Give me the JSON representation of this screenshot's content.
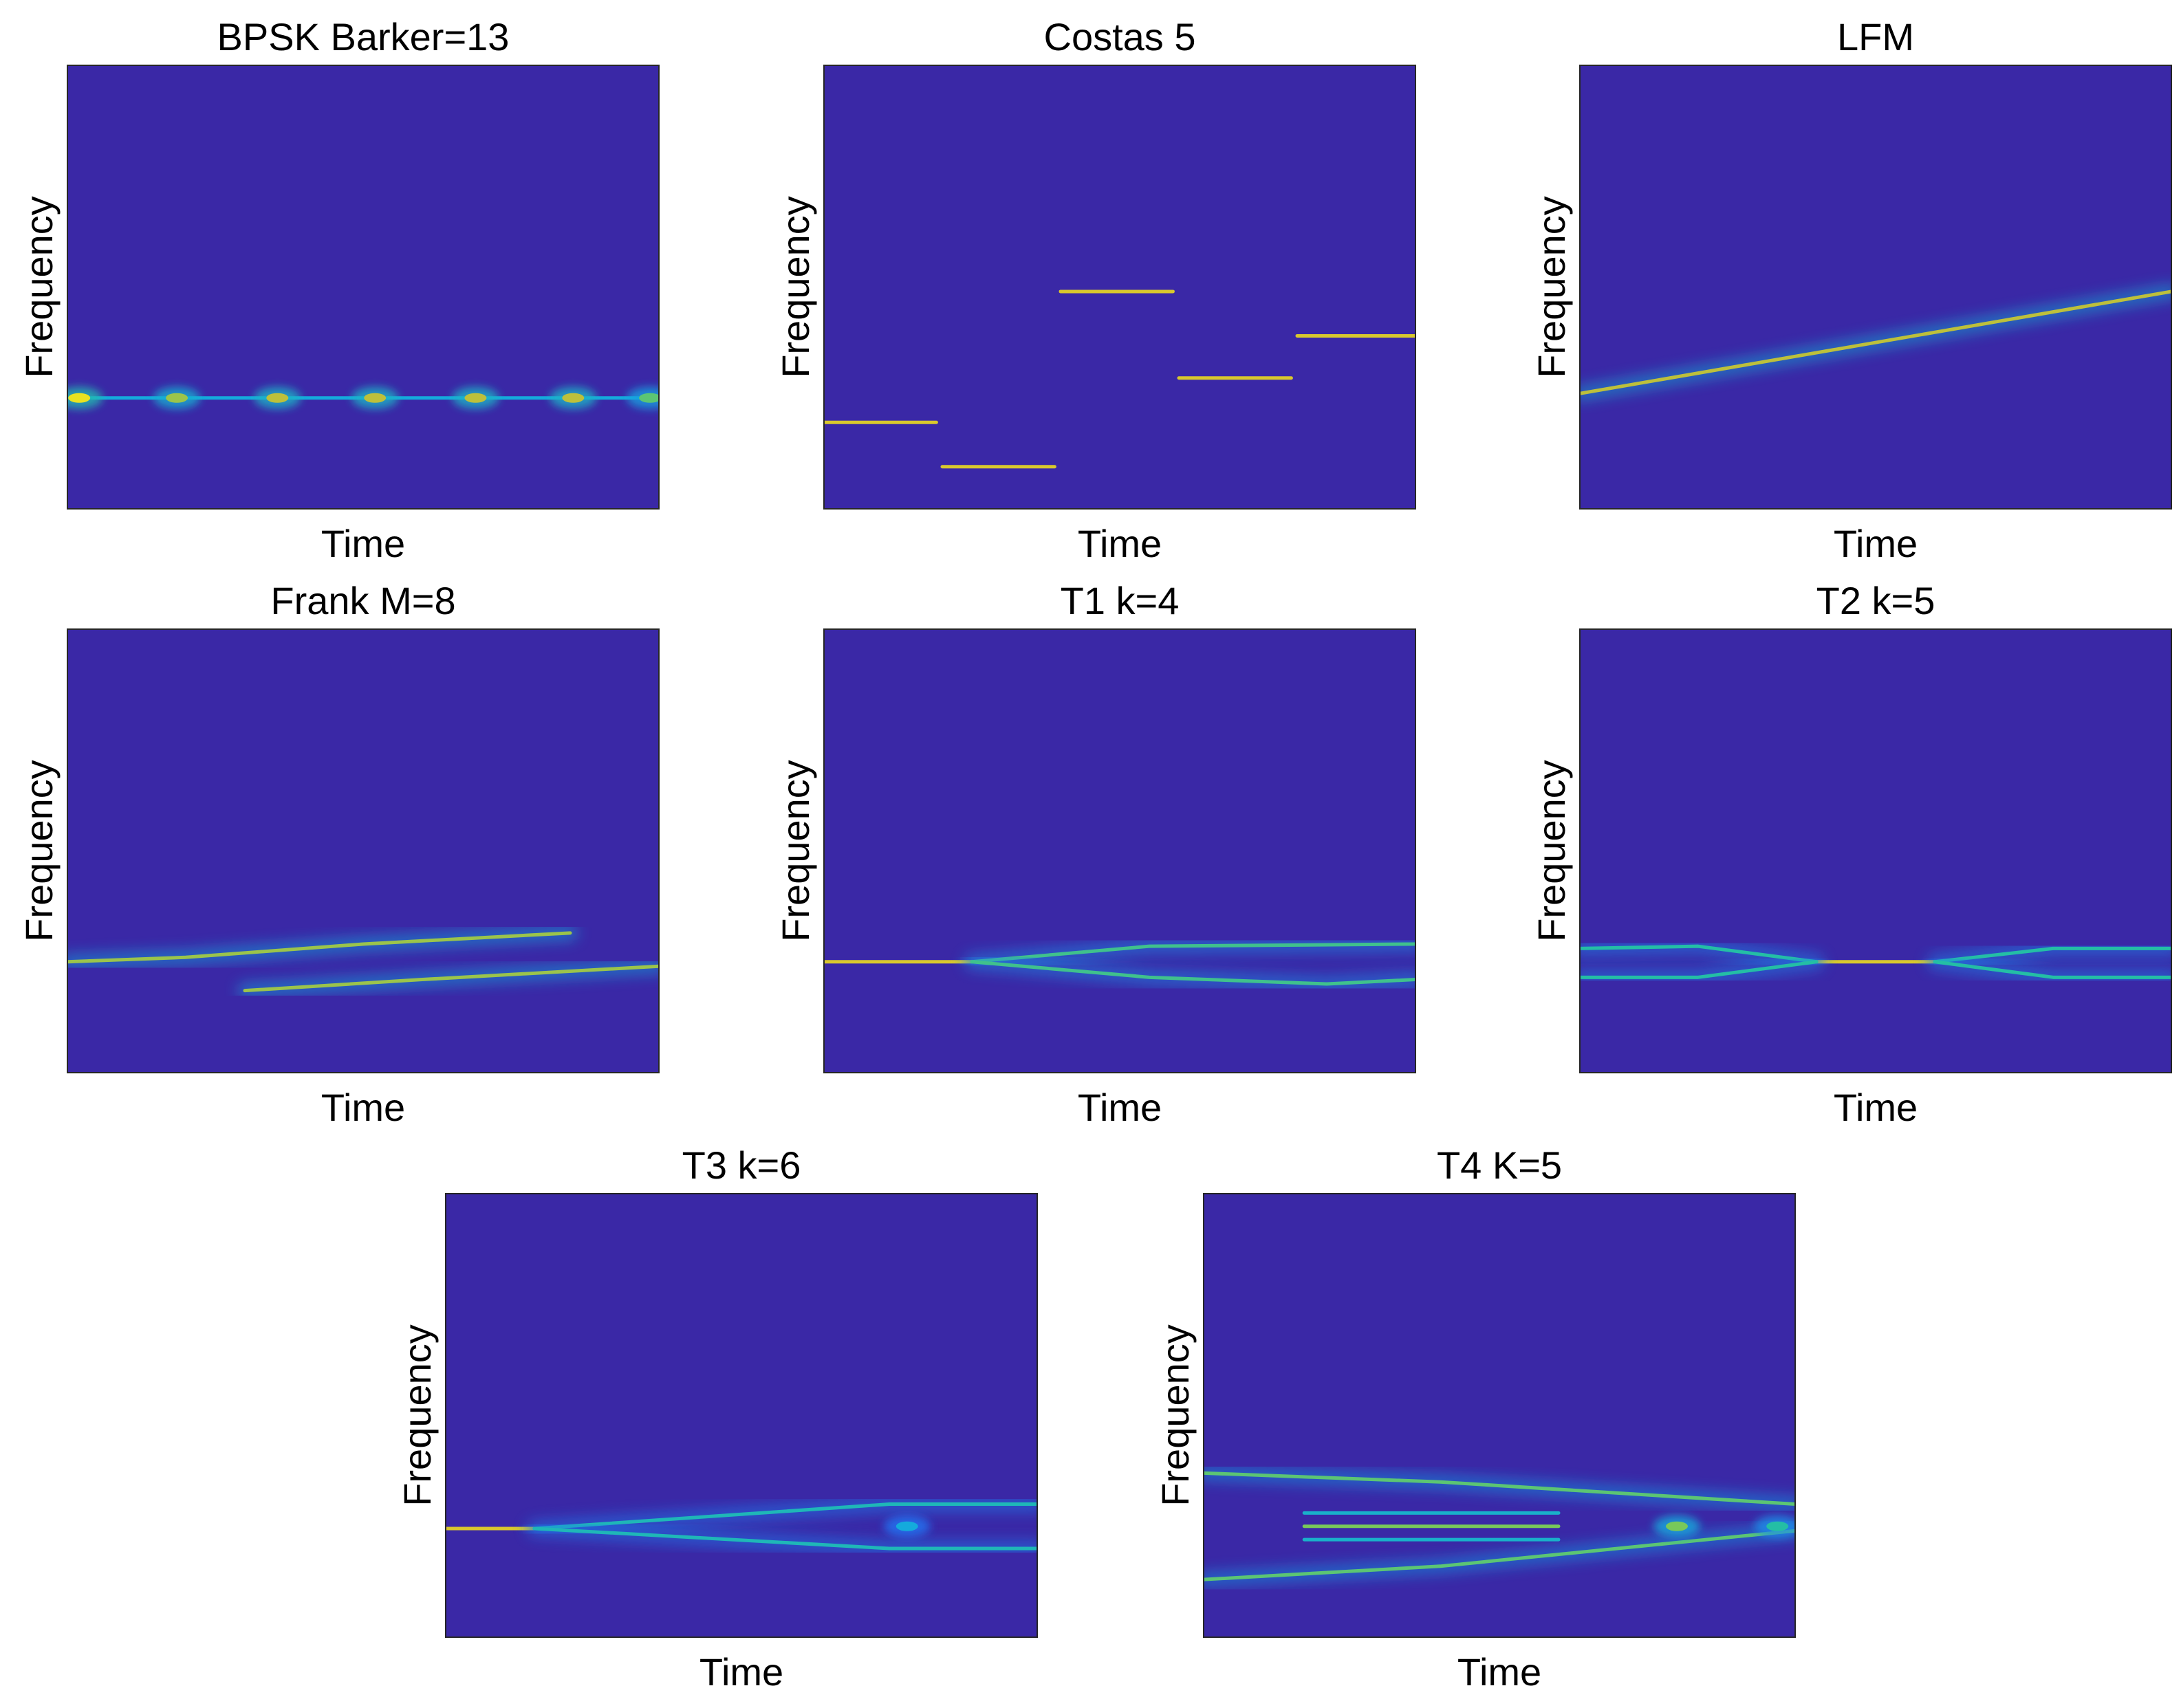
{
  "chart_data": [
    {
      "type": "heatmap",
      "title": "BPSK  Barker=13",
      "xlabel": "Time",
      "ylabel": "Frequency",
      "xlim": [
        0,
        1
      ],
      "ylim": [
        0,
        1
      ],
      "ridges": [
        {
          "points": [
            [
              0.0,
              0.25
            ],
            [
              1.0,
              0.25
            ]
          ],
          "intensity": 0.45
        }
      ],
      "hotspots": [
        {
          "x": 0.02,
          "y": 0.25,
          "intensity": 0.95
        },
        {
          "x": 0.185,
          "y": 0.25,
          "intensity": 0.8
        },
        {
          "x": 0.355,
          "y": 0.25,
          "intensity": 0.85
        },
        {
          "x": 0.52,
          "y": 0.25,
          "intensity": 0.85
        },
        {
          "x": 0.69,
          "y": 0.25,
          "intensity": 0.85
        },
        {
          "x": 0.855,
          "y": 0.25,
          "intensity": 0.85
        },
        {
          "x": 0.985,
          "y": 0.25,
          "intensity": 0.7
        }
      ]
    },
    {
      "type": "heatmap",
      "title": "Costas  5",
      "xlabel": "Time",
      "ylabel": "Frequency",
      "xlim": [
        0,
        1
      ],
      "ylim": [
        0,
        1
      ],
      "ridges": [
        {
          "points": [
            [
              0.0,
              0.195
            ],
            [
              0.19,
              0.195
            ]
          ],
          "intensity": 0.9
        },
        {
          "points": [
            [
              0.2,
              0.095
            ],
            [
              0.39,
              0.095
            ]
          ],
          "intensity": 0.9
        },
        {
          "points": [
            [
              0.4,
              0.49
            ],
            [
              0.59,
              0.49
            ]
          ],
          "intensity": 0.9
        },
        {
          "points": [
            [
              0.6,
              0.295
            ],
            [
              0.79,
              0.295
            ]
          ],
          "intensity": 0.9
        },
        {
          "points": [
            [
              0.8,
              0.39
            ],
            [
              1.0,
              0.39
            ]
          ],
          "intensity": 0.9
        }
      ],
      "hotspots": []
    },
    {
      "type": "heatmap",
      "title": "LFM",
      "xlabel": "Time",
      "ylabel": "Frequency",
      "xlim": [
        0,
        1
      ],
      "ylim": [
        0,
        1
      ],
      "ridges": [
        {
          "points": [
            [
              0.0,
              0.26
            ],
            [
              1.0,
              0.49
            ]
          ],
          "intensity": 0.85
        }
      ],
      "hotspots": []
    },
    {
      "type": "heatmap",
      "title": "Frank  M=8",
      "xlabel": "Time",
      "ylabel": "Frequency",
      "xlim": [
        0,
        1
      ],
      "ylim": [
        0,
        1
      ],
      "ridges": [
        {
          "points": [
            [
              0.0,
              0.25
            ],
            [
              0.2,
              0.26
            ],
            [
              0.5,
              0.29
            ],
            [
              0.85,
              0.315
            ]
          ],
          "intensity": 0.8
        },
        {
          "points": [
            [
              0.3,
              0.185
            ],
            [
              0.6,
              0.21
            ],
            [
              1.0,
              0.24
            ]
          ],
          "intensity": 0.8
        }
      ],
      "hotspots": []
    },
    {
      "type": "heatmap",
      "title": "T1  k=4",
      "xlabel": "Time",
      "ylabel": "Frequency",
      "xlim": [
        0,
        1
      ],
      "ylim": [
        0,
        1
      ],
      "ridges": [
        {
          "points": [
            [
              0.0,
              0.25
            ],
            [
              0.25,
              0.25
            ]
          ],
          "intensity": 0.9
        },
        {
          "points": [
            [
              0.25,
              0.25
            ],
            [
              0.55,
              0.285
            ],
            [
              1.0,
              0.29
            ]
          ],
          "intensity": 0.65
        },
        {
          "points": [
            [
              0.25,
              0.25
            ],
            [
              0.55,
              0.215
            ],
            [
              0.85,
              0.2
            ],
            [
              1.0,
              0.21
            ]
          ],
          "intensity": 0.65
        }
      ],
      "hotspots": []
    },
    {
      "type": "heatmap",
      "title": "T2  k=5",
      "xlabel": "Time",
      "ylabel": "Frequency",
      "xlim": [
        0,
        1
      ],
      "ylim": [
        0,
        1
      ],
      "ridges": [
        {
          "points": [
            [
              0.4,
              0.25
            ],
            [
              0.6,
              0.25
            ]
          ],
          "intensity": 0.9
        },
        {
          "points": [
            [
              0.0,
              0.28
            ],
            [
              0.2,
              0.285
            ],
            [
              0.4,
              0.25
            ]
          ],
          "intensity": 0.6
        },
        {
          "points": [
            [
              0.0,
              0.215
            ],
            [
              0.2,
              0.215
            ],
            [
              0.4,
              0.25
            ]
          ],
          "intensity": 0.6
        },
        {
          "points": [
            [
              0.6,
              0.25
            ],
            [
              0.8,
              0.28
            ],
            [
              1.0,
              0.28
            ]
          ],
          "intensity": 0.6
        },
        {
          "points": [
            [
              0.6,
              0.25
            ],
            [
              0.8,
              0.215
            ],
            [
              1.0,
              0.215
            ]
          ],
          "intensity": 0.6
        }
      ],
      "hotspots": []
    },
    {
      "type": "heatmap",
      "title": "T3  k=6",
      "xlabel": "Time",
      "ylabel": "Frequency",
      "xlim": [
        0,
        1
      ],
      "ylim": [
        0,
        1
      ],
      "ridges": [
        {
          "points": [
            [
              0.0,
              0.245
            ],
            [
              0.15,
              0.245
            ]
          ],
          "intensity": 0.9
        },
        {
          "points": [
            [
              0.15,
              0.245
            ],
            [
              0.75,
              0.3
            ],
            [
              1.0,
              0.3
            ]
          ],
          "intensity": 0.55
        },
        {
          "points": [
            [
              0.15,
              0.245
            ],
            [
              0.75,
              0.2
            ],
            [
              1.0,
              0.2
            ]
          ],
          "intensity": 0.55
        }
      ],
      "hotspots": [
        {
          "x": 0.78,
          "y": 0.25,
          "intensity": 0.45
        }
      ]
    },
    {
      "type": "heatmap",
      "title": "T4  K=5",
      "xlabel": "Time",
      "ylabel": "Frequency",
      "xlim": [
        0,
        1
      ],
      "ylim": [
        0,
        1
      ],
      "ridges": [
        {
          "points": [
            [
              0.0,
              0.37
            ],
            [
              0.4,
              0.35
            ],
            [
              1.0,
              0.3
            ]
          ],
          "intensity": 0.7
        },
        {
          "points": [
            [
              0.0,
              0.13
            ],
            [
              0.4,
              0.16
            ],
            [
              1.0,
              0.24
            ]
          ],
          "intensity": 0.7
        },
        {
          "points": [
            [
              0.17,
              0.25
            ],
            [
              0.6,
              0.25
            ]
          ],
          "intensity": 0.75
        },
        {
          "points": [
            [
              0.17,
              0.28
            ],
            [
              0.6,
              0.28
            ]
          ],
          "intensity": 0.5
        },
        {
          "points": [
            [
              0.17,
              0.22
            ],
            [
              0.6,
              0.22
            ]
          ],
          "intensity": 0.5
        }
      ],
      "hotspots": [
        {
          "x": 0.8,
          "y": 0.25,
          "intensity": 0.75
        },
        {
          "x": 0.97,
          "y": 0.25,
          "intensity": 0.6
        }
      ]
    }
  ]
}
